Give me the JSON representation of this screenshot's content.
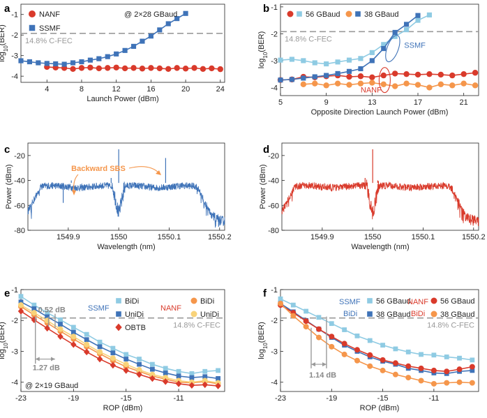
{
  "figure": {
    "panel_letters": [
      "a",
      "b",
      "c",
      "d",
      "e",
      "f"
    ]
  },
  "colors": {
    "nanf": "#d93a2b",
    "nanf_light": "#f5964b",
    "ssmf": "#3f73b8",
    "ssmf_light": "#8fcbe3",
    "yellow": "#f8d37a",
    "fec": "#9a9a9a",
    "orange_text": "#f5964b"
  },
  "chart_data": [
    {
      "id": "a",
      "type": "line",
      "title": "",
      "xlabel": "Launch Power (dBm)",
      "ylabel": "log10(BER)",
      "xlim": [
        1,
        24.5
      ],
      "ylim": [
        -4.3,
        -0.5
      ],
      "xticks": [
        4,
        8,
        12,
        16,
        20,
        24
      ],
      "yticks": [
        -4,
        -3,
        -2,
        -1
      ],
      "fec": {
        "value": -1.92,
        "label": "14.8% C-FEC"
      },
      "note": "@ 2×28 GBaud",
      "series": [
        {
          "name": "NANF",
          "marker": "circle",
          "color": "#d93a2b",
          "x": [
            4,
            5,
            6,
            7,
            8,
            9,
            10,
            11,
            12,
            13,
            14,
            15,
            16,
            17,
            18,
            19,
            20,
            21,
            22,
            23,
            24
          ],
          "y": [
            -3.55,
            -3.58,
            -3.6,
            -3.65,
            -3.6,
            -3.58,
            -3.62,
            -3.6,
            -3.58,
            -3.62,
            -3.6,
            -3.63,
            -3.6,
            -3.62,
            -3.65,
            -3.6,
            -3.63,
            -3.6,
            -3.65,
            -3.62,
            -3.66
          ]
        },
        {
          "name": "SSMF",
          "marker": "square",
          "color": "#3f73b8",
          "x": [
            1,
            2,
            3,
            4,
            5,
            6,
            7,
            8,
            9,
            10,
            11,
            12,
            13,
            14,
            15,
            16,
            17,
            18,
            19,
            20
          ],
          "y": [
            -3.25,
            -3.3,
            -3.35,
            -3.38,
            -3.4,
            -3.42,
            -3.35,
            -3.3,
            -3.22,
            -3.15,
            -3.05,
            -2.92,
            -2.75,
            -2.55,
            -2.3,
            -2.05,
            -1.75,
            -1.45,
            -1.2,
            -0.95
          ]
        }
      ]
    },
    {
      "id": "b",
      "type": "line",
      "title": "",
      "xlabel": "Opposite Direction Launch Power (dBm)",
      "ylabel": "log10(BER)",
      "xlim": [
        5,
        22.3
      ],
      "ylim": [
        -4.3,
        -0.9
      ],
      "xticks": [
        5,
        9,
        13,
        17,
        21
      ],
      "yticks": [
        -4,
        -3,
        -2,
        -1
      ],
      "fec": {
        "value": -1.92,
        "label": "14.8% C-FEC"
      },
      "legend": {
        "labels": [
          "56 GBaud",
          "38 GBaud"
        ]
      },
      "annotations": [
        "SSMF",
        "NANF"
      ],
      "series": [
        {
          "name": "NANF 56 GBaud",
          "marker": "circle",
          "color": "#d93a2b",
          "x": [
            5,
            6,
            7,
            8,
            9,
            10,
            11,
            12,
            13,
            14,
            15,
            16,
            17,
            18,
            19,
            20,
            21,
            22
          ],
          "y": [
            -3.72,
            -3.7,
            -3.6,
            -3.62,
            -3.58,
            -3.55,
            -3.6,
            -3.58,
            -3.62,
            -3.55,
            -3.48,
            -3.5,
            -3.52,
            -3.5,
            -3.52,
            -3.55,
            -3.5,
            -3.45
          ]
        },
        {
          "name": "NANF 38 GBaud",
          "marker": "circle",
          "color": "#f5964b",
          "x": [
            7,
            8,
            9,
            10,
            11,
            12,
            13,
            14,
            15,
            16,
            17,
            18,
            19,
            20,
            21,
            22
          ],
          "y": [
            -3.88,
            -3.85,
            -3.92,
            -3.85,
            -3.9,
            -3.85,
            -3.82,
            -3.88,
            -3.95,
            -3.85,
            -3.9,
            -4.0,
            -3.88,
            -3.92,
            -3.85,
            -3.92
          ]
        },
        {
          "name": "SSMF 56 GBaud",
          "marker": "square",
          "color": "#8fcbe3",
          "x": [
            5,
            6,
            7,
            8,
            9,
            10,
            11,
            12,
            13,
            14,
            15,
            16,
            17,
            18
          ],
          "y": [
            -2.98,
            -2.95,
            -3.0,
            -3.08,
            -3.12,
            -3.05,
            -2.98,
            -2.92,
            -2.7,
            -2.4,
            -2.1,
            -1.85,
            -1.5,
            -1.3
          ]
        },
        {
          "name": "SSMF 38 GBaud",
          "marker": "square",
          "color": "#3f73b8",
          "x": [
            5,
            6,
            7,
            8,
            9,
            10,
            11,
            12,
            13,
            14,
            15,
            16,
            17
          ],
          "y": [
            -3.72,
            -3.7,
            -3.65,
            -3.6,
            -3.55,
            -3.48,
            -3.4,
            -3.3,
            -3.0,
            -2.55,
            -1.95,
            -1.65,
            -1.32
          ]
        }
      ]
    },
    {
      "id": "c",
      "type": "line",
      "title": "",
      "xlabel": "Wavelength (nm)",
      "ylabel": "Power (dBm)",
      "xlim": [
        1549.82,
        1550.21
      ],
      "ylim": [
        -80,
        -10
      ],
      "xticks": [
        1549.9,
        1550,
        1550.1,
        1550.2
      ],
      "xtick_labels": [
        "1549.9",
        "1550",
        "1550.1",
        "1550.2"
      ],
      "yticks": [
        -80,
        -60,
        -40,
        -20
      ],
      "annotation": "Backward SBS",
      "spectrum": {
        "center": 1550.0,
        "floor": -45,
        "noise_floor": -73,
        "peaks": [
          {
            "x": 1550.0,
            "y": -15
          },
          {
            "x": 1549.985,
            "y": -38
          },
          {
            "x": 1550.01,
            "y": -44
          },
          {
            "x": 1549.89,
            "y": -58
          },
          {
            "x": 1550.093,
            "y": -22
          },
          {
            "x": 1549.906,
            "y": -40
          }
        ]
      }
    },
    {
      "id": "d",
      "type": "line",
      "title": "",
      "xlabel": "Wavelength (nm)",
      "ylabel": "Power (dBm)",
      "xlim": [
        1549.82,
        1550.21
      ],
      "ylim": [
        -80,
        -10
      ],
      "xticks": [
        1549.9,
        1550,
        1550.1,
        1550.2
      ],
      "xtick_labels": [
        "1549.9",
        "1550",
        "1550.1",
        "1550.2"
      ],
      "yticks": [
        -80,
        -60,
        -40,
        -20
      ],
      "spectrum": {
        "center": 1550.0,
        "floor": -45,
        "noise_floor": -73,
        "peaks": [
          {
            "x": 1550.0,
            "y": -15
          },
          {
            "x": 1549.985,
            "y": -38
          },
          {
            "x": 1550.01,
            "y": -40
          }
        ]
      }
    },
    {
      "id": "e",
      "type": "line",
      "title": "",
      "xlabel": "ROP (dBm)",
      "ylabel": "log10(BER)",
      "xlim": [
        -23,
        -7.5
      ],
      "ylim": [
        -4.3,
        -1
      ],
      "xticks": [
        -23,
        -19,
        -15,
        -11
      ],
      "yticks": [
        -4,
        -3,
        -2,
        -1
      ],
      "fec": {
        "value": -1.92,
        "label": "14.8% C-FEC"
      },
      "note": "@ 2×19 GBaud",
      "legend_groups": [
        "SSMF",
        "NANF"
      ],
      "annotations": [
        "0.52 dB",
        "1.27 dB"
      ],
      "series": [
        {
          "name": "SSMF BiDi",
          "marker": "square",
          "color": "#8fcbe3",
          "x": [
            -23,
            -22,
            -21,
            -20,
            -19,
            -18,
            -17,
            -16,
            -15,
            -14,
            -13,
            -12,
            -11,
            -10,
            -9,
            -8
          ],
          "y": [
            -1.22,
            -1.5,
            -1.75,
            -1.98,
            -2.22,
            -2.45,
            -2.7,
            -2.9,
            -3.1,
            -3.25,
            -3.42,
            -3.55,
            -3.65,
            -3.72,
            -3.65,
            -3.62
          ]
        },
        {
          "name": "SSMF UniDi",
          "marker": "square",
          "color": "#3f73b8",
          "x": [
            -23,
            -22,
            -21,
            -20,
            -19,
            -18,
            -17,
            -16,
            -15,
            -14,
            -13,
            -12,
            -11,
            -10,
            -9,
            -8
          ],
          "y": [
            -1.4,
            -1.62,
            -1.88,
            -2.12,
            -2.38,
            -2.62,
            -2.85,
            -3.05,
            -3.25,
            -3.42,
            -3.58,
            -3.7,
            -3.8,
            -3.85,
            -3.82,
            -3.88
          ]
        },
        {
          "name": "NANF BiDi",
          "marker": "circle",
          "color": "#f5964b",
          "x": [
            -23,
            -22,
            -21,
            -20,
            -19,
            -18,
            -17,
            -16,
            -15,
            -14,
            -13,
            -12,
            -11,
            -10,
            -9,
            -8
          ],
          "y": [
            -1.55,
            -1.82,
            -2.08,
            -2.35,
            -2.6,
            -2.85,
            -3.08,
            -3.3,
            -3.5,
            -3.65,
            -3.8,
            -3.9,
            -4.0,
            -4.02,
            -3.98,
            -4.05
          ]
        },
        {
          "name": "NANF UniDi",
          "marker": "circle",
          "color": "#f8d37a",
          "x": [
            -23,
            -22,
            -21,
            -20,
            -19,
            -18,
            -17,
            -16,
            -15,
            -14,
            -13,
            -12,
            -11,
            -10,
            -9,
            -8
          ],
          "y": [
            -1.5,
            -1.75,
            -2.0,
            -2.28,
            -2.52,
            -2.78,
            -3.02,
            -3.22,
            -3.42,
            -3.6,
            -3.75,
            -3.85,
            -3.95,
            -4.0,
            -3.95,
            -4.02
          ]
        },
        {
          "name": "OBTB",
          "marker": "diamond",
          "color": "#d93a2b",
          "x": [
            -23,
            -22,
            -21,
            -20,
            -19,
            -18,
            -17,
            -16,
            -15,
            -14,
            -13,
            -12,
            -11,
            -10,
            -9,
            -8
          ],
          "y": [
            -1.7,
            -1.98,
            -2.25,
            -2.52,
            -2.78,
            -3.02,
            -3.25,
            -3.45,
            -3.62,
            -3.75,
            -3.88,
            -3.98,
            -4.05,
            -4.1,
            -4.08,
            -4.12
          ]
        }
      ]
    },
    {
      "id": "f",
      "type": "line",
      "title": "",
      "xlabel": "ROP (dBm)",
      "ylabel": "log10(BER)",
      "xlim": [
        -23,
        -7.5
      ],
      "ylim": [
        -4.3,
        -1
      ],
      "xticks": [
        -23,
        -19,
        -15,
        -11
      ],
      "yticks": [
        -4,
        -3,
        -2,
        -1
      ],
      "fec": {
        "value": -1.92,
        "label": "14.8% C-FEC"
      },
      "legend_groups": [
        "SSMF",
        "BiDi",
        "NANF",
        "BiDi"
      ],
      "legend": {
        "labels": [
          "56 GBaud",
          "38 GBaud"
        ]
      },
      "annotations": [
        "1.14 dB"
      ],
      "series": [
        {
          "name": "SSMF 56 GBaud",
          "marker": "square",
          "color": "#8fcbe3",
          "x": [
            -23,
            -22,
            -21,
            -20,
            -19,
            -18,
            -17,
            -16,
            -15,
            -14,
            -13,
            -12,
            -11,
            -10,
            -9,
            -8
          ],
          "y": [
            -1.3,
            -1.5,
            -1.7,
            -1.9,
            -2.1,
            -2.3,
            -2.5,
            -2.65,
            -2.8,
            -2.92,
            -3.02,
            -3.1,
            -3.12,
            -3.18,
            -3.22,
            -3.28
          ]
        },
        {
          "name": "SSMF 38 GBaud",
          "marker": "square",
          "color": "#3f73b8",
          "x": [
            -23,
            -22,
            -21,
            -20,
            -19,
            -18,
            -17,
            -16,
            -15,
            -14,
            -13,
            -12,
            -11,
            -10,
            -9,
            -8
          ],
          "y": [
            -1.45,
            -1.72,
            -2.0,
            -2.28,
            -2.55,
            -2.8,
            -3.0,
            -3.18,
            -3.32,
            -3.42,
            -3.55,
            -3.62,
            -3.7,
            -3.72,
            -3.65,
            -3.62
          ]
        },
        {
          "name": "NANF 56 GBaud",
          "marker": "circle",
          "color": "#d93a2b",
          "x": [
            -23,
            -22,
            -21,
            -20,
            -19,
            -18,
            -17,
            -16,
            -15,
            -14,
            -13,
            -12,
            -11,
            -10,
            -9,
            -8
          ],
          "y": [
            -1.5,
            -1.75,
            -2.02,
            -2.28,
            -2.52,
            -2.75,
            -2.95,
            -3.12,
            -3.28,
            -3.38,
            -3.48,
            -3.55,
            -3.62,
            -3.65,
            -3.58,
            -3.5
          ]
        },
        {
          "name": "NANF 38 GBaud",
          "marker": "circle",
          "color": "#f5964b",
          "x": [
            -23,
            -22,
            -21,
            -20,
            -19,
            -18,
            -17,
            -16,
            -15,
            -14,
            -13,
            -12,
            -11,
            -10,
            -9,
            -8
          ],
          "y": [
            -1.45,
            -1.85,
            -2.2,
            -2.55,
            -2.85,
            -3.1,
            -3.3,
            -3.48,
            -3.62,
            -3.75,
            -3.85,
            -3.95,
            -4.05,
            -4.02,
            -4.0,
            -4.02
          ]
        }
      ]
    }
  ]
}
